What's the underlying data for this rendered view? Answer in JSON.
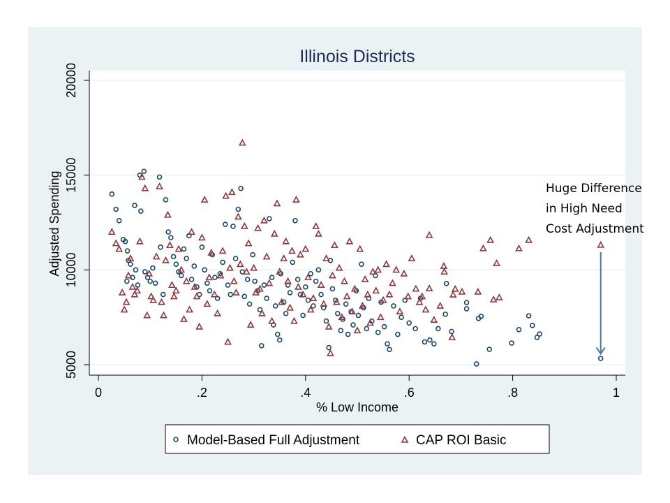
{
  "chart_data": {
    "type": "scatter",
    "title": "Illinois Districts",
    "xlabel": "% Low Income",
    "ylabel": "Adjusted Spending",
    "xlim": [
      0,
      1
    ],
    "ylim": [
      5000,
      20000
    ],
    "x_ticks": [
      0,
      0.2,
      0.4,
      0.6,
      0.8,
      1
    ],
    "x_tick_labels": [
      "0",
      ".2",
      ".4",
      ".6",
      ".8",
      "1"
    ],
    "y_ticks": [
      5000,
      10000,
      15000,
      20000
    ],
    "y_tick_labels": [
      "5000",
      "10000",
      "15000",
      "20000"
    ],
    "grid": "horizontal",
    "legend_position": "bottom",
    "colors": {
      "panel_background": "#eaf2f3",
      "plot_background": "#ffffff",
      "title": "#1e2c53",
      "model_based": "#1a476f",
      "cap_roi": "#90353b",
      "arrow": "#4a76a8",
      "grid": "#eaf2f3"
    },
    "annotation": {
      "lines": [
        "Huge Difference",
        "in High Need",
        "Cost Adjustment"
      ],
      "arrow_from": [
        0.97,
        11300
      ],
      "arrow_to": [
        0.97,
        5500
      ]
    },
    "series": [
      {
        "name": "Model-Based Full Adjustment",
        "marker": "circle",
        "points": [
          [
            0.026,
            14000
          ],
          [
            0.034,
            13200
          ],
          [
            0.04,
            12600
          ],
          [
            0.048,
            11600
          ],
          [
            0.052,
            11500
          ],
          [
            0.056,
            11000
          ],
          [
            0.058,
            10500
          ],
          [
            0.062,
            10300
          ],
          [
            0.066,
            9600
          ],
          [
            0.055,
            9400
          ],
          [
            0.07,
            13400
          ],
          [
            0.072,
            10000
          ],
          [
            0.076,
            9200
          ],
          [
            0.08,
            15000
          ],
          [
            0.082,
            13100
          ],
          [
            0.088,
            15200
          ],
          [
            0.09,
            9900
          ],
          [
            0.095,
            9600
          ],
          [
            0.1,
            9400
          ],
          [
            0.105,
            10100
          ],
          [
            0.11,
            9300
          ],
          [
            0.118,
            14900
          ],
          [
            0.12,
            11200
          ],
          [
            0.125,
            8700
          ],
          [
            0.13,
            13700
          ],
          [
            0.135,
            12000
          ],
          [
            0.14,
            11700
          ],
          [
            0.145,
            10700
          ],
          [
            0.15,
            10300
          ],
          [
            0.155,
            9900
          ],
          [
            0.16,
            9700
          ],
          [
            0.165,
            11100
          ],
          [
            0.17,
            10600
          ],
          [
            0.175,
            11800
          ],
          [
            0.18,
            9500
          ],
          [
            0.185,
            10200
          ],
          [
            0.19,
            9100
          ],
          [
            0.195,
            8700
          ],
          [
            0.2,
            11200
          ],
          [
            0.205,
            10000
          ],
          [
            0.21,
            9300
          ],
          [
            0.215,
            8900
          ],
          [
            0.22,
            10800
          ],
          [
            0.225,
            9600
          ],
          [
            0.23,
            8500
          ],
          [
            0.235,
            9800
          ],
          [
            0.24,
            10400
          ],
          [
            0.245,
            12400
          ],
          [
            0.25,
            9200
          ],
          [
            0.255,
            8700
          ],
          [
            0.26,
            12300
          ],
          [
            0.265,
            10600
          ],
          [
            0.27,
            13200
          ],
          [
            0.275,
            14300
          ],
          [
            0.278,
            9900
          ],
          [
            0.282,
            8600
          ],
          [
            0.288,
            9500
          ],
          [
            0.292,
            8200
          ],
          [
            0.298,
            10800
          ],
          [
            0.302,
            9400
          ],
          [
            0.308,
            8900
          ],
          [
            0.312,
            7900
          ],
          [
            0.315,
            6000
          ],
          [
            0.32,
            9200
          ],
          [
            0.325,
            8500
          ],
          [
            0.33,
            12700
          ],
          [
            0.335,
            9600
          ],
          [
            0.338,
            7100
          ],
          [
            0.342,
            8100
          ],
          [
            0.346,
            6600
          ],
          [
            0.35,
            6300
          ],
          [
            0.352,
            9800
          ],
          [
            0.358,
            8300
          ],
          [
            0.362,
            7700
          ],
          [
            0.366,
            9200
          ],
          [
            0.37,
            8800
          ],
          [
            0.375,
            10400
          ],
          [
            0.38,
            12600
          ],
          [
            0.385,
            9500
          ],
          [
            0.39,
            8700
          ],
          [
            0.395,
            7600
          ],
          [
            0.4,
            9100
          ],
          [
            0.405,
            8400
          ],
          [
            0.41,
            9800
          ],
          [
            0.415,
            8100
          ],
          [
            0.42,
            9400
          ],
          [
            0.425,
            10000
          ],
          [
            0.43,
            8700
          ],
          [
            0.435,
            8000
          ],
          [
            0.44,
            7300
          ],
          [
            0.445,
            5900
          ],
          [
            0.448,
            10500
          ],
          [
            0.452,
            9000
          ],
          [
            0.458,
            8400
          ],
          [
            0.462,
            7700
          ],
          [
            0.468,
            6800
          ],
          [
            0.472,
            7400
          ],
          [
            0.478,
            8200
          ],
          [
            0.482,
            6600
          ],
          [
            0.488,
            7800
          ],
          [
            0.492,
            7100
          ],
          [
            0.498,
            8900
          ],
          [
            0.502,
            7600
          ],
          [
            0.508,
            10300
          ],
          [
            0.512,
            8000
          ],
          [
            0.518,
            6900
          ],
          [
            0.522,
            8500
          ],
          [
            0.528,
            7300
          ],
          [
            0.535,
            9700
          ],
          [
            0.54,
            6700
          ],
          [
            0.546,
            8300
          ],
          [
            0.552,
            7000
          ],
          [
            0.558,
            6100
          ],
          [
            0.562,
            5800
          ],
          [
            0.57,
            8100
          ],
          [
            0.578,
            6600
          ],
          [
            0.585,
            7500
          ],
          [
            0.592,
            8400
          ],
          [
            0.6,
            7200
          ],
          [
            0.612,
            6900
          ],
          [
            0.622,
            8500
          ],
          [
            0.63,
            6200
          ],
          [
            0.64,
            6300
          ],
          [
            0.648,
            6100
          ],
          [
            0.656,
            6900
          ],
          [
            0.672,
            9280
          ],
          [
            0.67,
            7660
          ],
          [
            0.682,
            6750
          ],
          [
            0.711,
            8280
          ],
          [
            0.711,
            7950
          ],
          [
            0.73,
            5040
          ],
          [
            0.734,
            7440
          ],
          [
            0.739,
            7550
          ],
          [
            0.755,
            5810
          ],
          [
            0.798,
            6140
          ],
          [
            0.812,
            6850
          ],
          [
            0.831,
            7580
          ],
          [
            0.838,
            7070
          ],
          [
            0.847,
            6440
          ],
          [
            0.852,
            6620
          ],
          [
            0.97,
            5330
          ]
        ]
      },
      {
        "name": "CAP ROI Basic",
        "marker": "triangle",
        "points": [
          [
            0.026,
            12000
          ],
          [
            0.034,
            11400
          ],
          [
            0.04,
            11100
          ],
          [
            0.046,
            8800
          ],
          [
            0.05,
            7900
          ],
          [
            0.054,
            8300
          ],
          [
            0.058,
            9700
          ],
          [
            0.062,
            10600
          ],
          [
            0.066,
            9100
          ],
          [
            0.07,
            8700
          ],
          [
            0.075,
            8900
          ],
          [
            0.08,
            11500
          ],
          [
            0.084,
            14900
          ],
          [
            0.09,
            14300
          ],
          [
            0.094,
            7600
          ],
          [
            0.098,
            9800
          ],
          [
            0.102,
            8600
          ],
          [
            0.106,
            8400
          ],
          [
            0.112,
            10700
          ],
          [
            0.118,
            14400
          ],
          [
            0.122,
            8300
          ],
          [
            0.126,
            7600
          ],
          [
            0.13,
            10500
          ],
          [
            0.134,
            12900
          ],
          [
            0.138,
            11300
          ],
          [
            0.142,
            9200
          ],
          [
            0.146,
            8600
          ],
          [
            0.15,
            8900
          ],
          [
            0.155,
            11100
          ],
          [
            0.16,
            10000
          ],
          [
            0.165,
            7400
          ],
          [
            0.17,
            9400
          ],
          [
            0.176,
            7900
          ],
          [
            0.18,
            12000
          ],
          [
            0.186,
            9100
          ],
          [
            0.19,
            8600
          ],
          [
            0.195,
            7000
          ],
          [
            0.2,
            11700
          ],
          [
            0.205,
            13700
          ],
          [
            0.21,
            8200
          ],
          [
            0.214,
            9600
          ],
          [
            0.218,
            10900
          ],
          [
            0.224,
            8700
          ],
          [
            0.23,
            7700
          ],
          [
            0.236,
            9700
          ],
          [
            0.24,
            11000
          ],
          [
            0.246,
            13900
          ],
          [
            0.25,
            6200
          ],
          [
            0.254,
            10100
          ],
          [
            0.258,
            14100
          ],
          [
            0.262,
            9400
          ],
          [
            0.266,
            8800
          ],
          [
            0.27,
            12800
          ],
          [
            0.274,
            10300
          ],
          [
            0.278,
            16700
          ],
          [
            0.282,
            12300
          ],
          [
            0.286,
            9900
          ],
          [
            0.29,
            11400
          ],
          [
            0.294,
            7100
          ],
          [
            0.3,
            10100
          ],
          [
            0.304,
            8800
          ],
          [
            0.308,
            12200
          ],
          [
            0.312,
            9000
          ],
          [
            0.316,
            7700
          ],
          [
            0.32,
            12600
          ],
          [
            0.325,
            10700
          ],
          [
            0.33,
            9300
          ],
          [
            0.335,
            7300
          ],
          [
            0.34,
            11900
          ],
          [
            0.345,
            13500
          ],
          [
            0.35,
            9900
          ],
          [
            0.354,
            8300
          ],
          [
            0.358,
            10600
          ],
          [
            0.362,
            11500
          ],
          [
            0.366,
            9400
          ],
          [
            0.37,
            8000
          ],
          [
            0.374,
            11000
          ],
          [
            0.378,
            7300
          ],
          [
            0.382,
            13700
          ],
          [
            0.386,
            9100
          ],
          [
            0.39,
            10800
          ],
          [
            0.395,
            8700
          ],
          [
            0.4,
            11100
          ],
          [
            0.405,
            9600
          ],
          [
            0.41,
            7900
          ],
          [
            0.415,
            8500
          ],
          [
            0.42,
            12300
          ],
          [
            0.425,
            11900
          ],
          [
            0.43,
            9200
          ],
          [
            0.435,
            8200
          ],
          [
            0.44,
            10600
          ],
          [
            0.445,
            7000
          ],
          [
            0.448,
            5600
          ],
          [
            0.452,
            9700
          ],
          [
            0.456,
            11300
          ],
          [
            0.46,
            8300
          ],
          [
            0.465,
            10100
          ],
          [
            0.47,
            7500
          ],
          [
            0.475,
            9400
          ],
          [
            0.48,
            8600
          ],
          [
            0.485,
            11500
          ],
          [
            0.49,
            7800
          ],
          [
            0.495,
            9000
          ],
          [
            0.5,
            6800
          ],
          [
            0.505,
            11100
          ],
          [
            0.51,
            8100
          ],
          [
            0.515,
            9500
          ],
          [
            0.52,
            8700
          ],
          [
            0.525,
            7200
          ],
          [
            0.53,
            9900
          ],
          [
            0.536,
            8900
          ],
          [
            0.54,
            10000
          ],
          [
            0.545,
            7500
          ],
          [
            0.55,
            8400
          ],
          [
            0.556,
            10300
          ],
          [
            0.562,
            8700
          ],
          [
            0.568,
            9300
          ],
          [
            0.575,
            10000
          ],
          [
            0.582,
            7800
          ],
          [
            0.59,
            9800
          ],
          [
            0.598,
            8600
          ],
          [
            0.605,
            10600
          ],
          [
            0.613,
            9000
          ],
          [
            0.62,
            8300
          ],
          [
            0.625,
            8600
          ],
          [
            0.632,
            7900
          ],
          [
            0.639,
            11830
          ],
          [
            0.639,
            9020
          ],
          [
            0.648,
            7360
          ],
          [
            0.66,
            8100
          ],
          [
            0.667,
            10200
          ],
          [
            0.668,
            9900
          ],
          [
            0.683,
            6440
          ],
          [
            0.685,
            8690
          ],
          [
            0.689,
            8990
          ],
          [
            0.702,
            8840
          ],
          [
            0.733,
            8840
          ],
          [
            0.743,
            11130
          ],
          [
            0.757,
            11570
          ],
          [
            0.763,
            8430
          ],
          [
            0.769,
            10350
          ],
          [
            0.774,
            8540
          ],
          [
            0.812,
            11130
          ],
          [
            0.831,
            11570
          ],
          [
            0.97,
            11310
          ]
        ]
      }
    ]
  }
}
